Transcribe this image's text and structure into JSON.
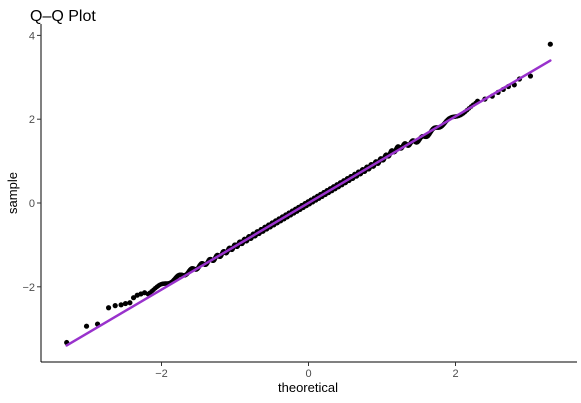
{
  "chart_data": {
    "type": "scatter",
    "title": "Q–Q Plot",
    "xlabel": "theoretical",
    "ylabel": "sample",
    "xlim": [
      -3.5,
      3.6
    ],
    "ylim": [
      -3.6,
      4.2
    ],
    "xticks": [
      -2,
      0,
      2
    ],
    "xtick_labels": [
      "−2",
      "0",
      "2"
    ],
    "yticks": [
      -2,
      0,
      2,
      4
    ],
    "ytick_labels": [
      "−2",
      "0",
      "2",
      "4"
    ],
    "grid": false,
    "point_color": "#000000",
    "line_color": "#9932CC",
    "reference_line": {
      "x": [
        -3.29,
        3.29
      ],
      "y": [
        -3.4,
        3.4
      ]
    },
    "point_count": 1000,
    "outliers": [
      {
        "x": -3.29,
        "y": -3.33
      },
      {
        "x": -3.02,
        "y": -2.94
      },
      {
        "x": -2.87,
        "y": -2.89
      },
      {
        "x": -2.72,
        "y": -2.5
      },
      {
        "x": -2.63,
        "y": -2.45
      },
      {
        "x": -2.55,
        "y": -2.43
      },
      {
        "x": -2.49,
        "y": -2.4
      },
      {
        "x": -2.43,
        "y": -2.38
      },
      {
        "x": -2.38,
        "y": -2.26
      },
      {
        "x": -2.33,
        "y": -2.2
      },
      {
        "x": -2.28,
        "y": -2.17
      },
      {
        "x": -2.23,
        "y": -2.14
      },
      {
        "x": 2.3,
        "y": 2.43
      },
      {
        "x": 2.4,
        "y": 2.48
      },
      {
        "x": 2.5,
        "y": 2.55
      },
      {
        "x": 2.58,
        "y": 2.64
      },
      {
        "x": 2.65,
        "y": 2.71
      },
      {
        "x": 2.72,
        "y": 2.78
      },
      {
        "x": 2.8,
        "y": 2.82
      },
      {
        "x": 2.87,
        "y": 2.96
      },
      {
        "x": 3.02,
        "y": 3.03
      },
      {
        "x": 3.29,
        "y": 3.79
      }
    ]
  }
}
